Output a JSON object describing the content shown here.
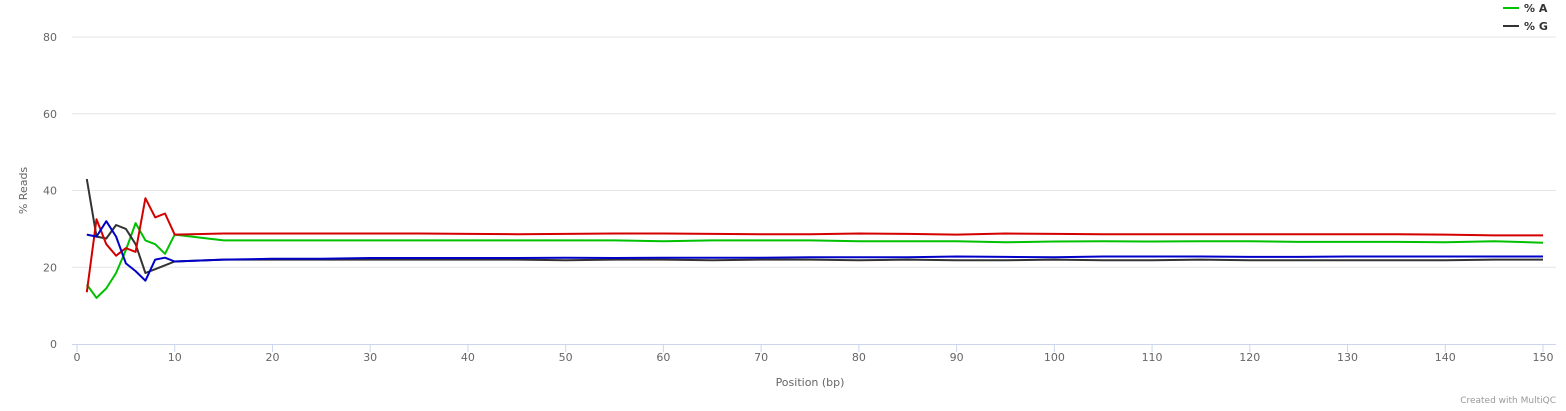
{
  "chart_data": {
    "type": "line",
    "xlabel": "Position (bp)",
    "ylabel": "% Reads",
    "xlim": [
      0,
      150
    ],
    "ylim": [
      0,
      80
    ],
    "x_ticks": [
      0,
      10,
      20,
      30,
      40,
      50,
      60,
      70,
      80,
      90,
      100,
      110,
      120,
      130,
      140,
      150
    ],
    "y_ticks": [
      0,
      20,
      40,
      60,
      80
    ],
    "grid": "horizontal",
    "legend_position": "top-right",
    "credit": "Created with MultiQC",
    "series": [
      {
        "name": "% A",
        "color": "#00c000",
        "points": [
          [
            1,
            15.5
          ],
          [
            2,
            12
          ],
          [
            3,
            14.5
          ],
          [
            4,
            18.5
          ],
          [
            5,
            24.5
          ],
          [
            6,
            31.5
          ],
          [
            7,
            27
          ],
          [
            8,
            26
          ],
          [
            9,
            23.5
          ],
          [
            10,
            28.5
          ],
          [
            15,
            27
          ],
          [
            20,
            27
          ],
          [
            25,
            27
          ],
          [
            30,
            27
          ],
          [
            35,
            27
          ],
          [
            40,
            27
          ],
          [
            45,
            27
          ],
          [
            50,
            27
          ],
          [
            55,
            27
          ],
          [
            60,
            26.8
          ],
          [
            65,
            27
          ],
          [
            70,
            27
          ],
          [
            75,
            27
          ],
          [
            80,
            26.8
          ],
          [
            85,
            26.8
          ],
          [
            90,
            26.8
          ],
          [
            95,
            26.5
          ],
          [
            100,
            26.7
          ],
          [
            105,
            26.8
          ],
          [
            110,
            26.7
          ],
          [
            115,
            26.8
          ],
          [
            120,
            26.8
          ],
          [
            125,
            26.6
          ],
          [
            130,
            26.6
          ],
          [
            135,
            26.6
          ],
          [
            140,
            26.5
          ],
          [
            145,
            26.8
          ],
          [
            150,
            26.4
          ]
        ]
      },
      {
        "name": "% G",
        "color": "#333333",
        "points": [
          [
            1,
            43
          ],
          [
            2,
            28
          ],
          [
            3,
            27.5
          ],
          [
            4,
            31
          ],
          [
            5,
            30
          ],
          [
            6,
            26
          ],
          [
            7,
            18.5
          ],
          [
            8,
            19.5
          ],
          [
            9,
            20.5
          ],
          [
            10,
            21.5
          ],
          [
            15,
            22
          ],
          [
            20,
            22
          ],
          [
            25,
            22
          ],
          [
            30,
            22
          ],
          [
            35,
            22
          ],
          [
            40,
            22
          ],
          [
            45,
            22
          ],
          [
            50,
            21.8
          ],
          [
            55,
            22
          ],
          [
            60,
            22
          ],
          [
            65,
            21.8
          ],
          [
            70,
            22
          ],
          [
            75,
            22
          ],
          [
            80,
            21.8
          ],
          [
            85,
            22
          ],
          [
            90,
            21.8
          ],
          [
            95,
            21.8
          ],
          [
            100,
            22
          ],
          [
            105,
            21.8
          ],
          [
            110,
            21.8
          ],
          [
            115,
            22
          ],
          [
            120,
            21.8
          ],
          [
            125,
            21.8
          ],
          [
            130,
            21.8
          ],
          [
            135,
            21.8
          ],
          [
            140,
            21.8
          ],
          [
            145,
            22
          ],
          [
            150,
            22
          ]
        ]
      },
      {
        "name": "",
        "color": "#d40000",
        "points": [
          [
            1,
            13.5
          ],
          [
            2,
            32.5
          ],
          [
            3,
            26
          ],
          [
            4,
            23
          ],
          [
            5,
            25
          ],
          [
            6,
            24
          ],
          [
            7,
            38
          ],
          [
            8,
            33
          ],
          [
            9,
            34
          ],
          [
            10,
            28.5
          ],
          [
            15,
            28.8
          ],
          [
            20,
            28.8
          ],
          [
            25,
            28.8
          ],
          [
            30,
            28.8
          ],
          [
            35,
            28.8
          ],
          [
            40,
            28.7
          ],
          [
            45,
            28.6
          ],
          [
            50,
            28.7
          ],
          [
            55,
            28.8
          ],
          [
            60,
            28.8
          ],
          [
            65,
            28.7
          ],
          [
            70,
            28.6
          ],
          [
            75,
            28.6
          ],
          [
            80,
            28.8
          ],
          [
            85,
            28.7
          ],
          [
            90,
            28.5
          ],
          [
            95,
            28.8
          ],
          [
            100,
            28.7
          ],
          [
            105,
            28.6
          ],
          [
            110,
            28.6
          ],
          [
            115,
            28.6
          ],
          [
            120,
            28.6
          ],
          [
            125,
            28.6
          ],
          [
            130,
            28.6
          ],
          [
            135,
            28.6
          ],
          [
            140,
            28.5
          ],
          [
            145,
            28.3
          ],
          [
            150,
            28.3
          ]
        ]
      },
      {
        "name": "",
        "color": "#0000c8",
        "points": [
          [
            1,
            28.5
          ],
          [
            2,
            28
          ],
          [
            3,
            32
          ],
          [
            4,
            28
          ],
          [
            5,
            21
          ],
          [
            6,
            19
          ],
          [
            7,
            16.5
          ],
          [
            8,
            22
          ],
          [
            9,
            22.5
          ],
          [
            10,
            21.5
          ],
          [
            15,
            22
          ],
          [
            20,
            22.2
          ],
          [
            25,
            22.2
          ],
          [
            30,
            22.4
          ],
          [
            35,
            22.4
          ],
          [
            40,
            22.4
          ],
          [
            45,
            22.4
          ],
          [
            50,
            22.5
          ],
          [
            55,
            22.4
          ],
          [
            60,
            22.5
          ],
          [
            65,
            22.5
          ],
          [
            70,
            22.5
          ],
          [
            75,
            22.6
          ],
          [
            80,
            22.6
          ],
          [
            85,
            22.6
          ],
          [
            90,
            22.8
          ],
          [
            95,
            22.7
          ],
          [
            100,
            22.6
          ],
          [
            105,
            22.8
          ],
          [
            110,
            22.8
          ],
          [
            115,
            22.8
          ],
          [
            120,
            22.7
          ],
          [
            125,
            22.7
          ],
          [
            130,
            22.8
          ],
          [
            135,
            22.8
          ],
          [
            140,
            22.8
          ],
          [
            145,
            22.8
          ],
          [
            150,
            22.8
          ]
        ]
      }
    ]
  }
}
